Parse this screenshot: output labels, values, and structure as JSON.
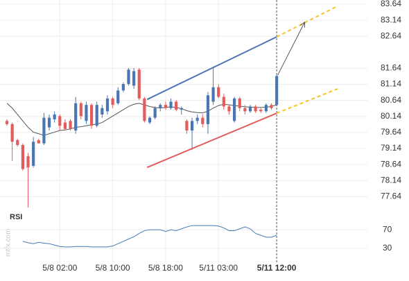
{
  "chart_data": {
    "type": "candlestick",
    "categories": [
      null,
      null,
      null,
      null,
      null,
      null,
      null,
      null,
      null,
      null,
      "5/8 02:00",
      null,
      null,
      null,
      null,
      null,
      null,
      null,
      null,
      null,
      "5/8 10:00",
      null,
      null,
      null,
      null,
      null,
      null,
      null,
      null,
      null,
      "5/8 18:00",
      null,
      null,
      null,
      null,
      null,
      null,
      null,
      null,
      null,
      "5/11 03:00",
      null,
      null,
      null,
      null,
      null,
      null,
      null,
      null,
      null,
      null,
      "5/11 12:00"
    ],
    "xlim": [
      -1.31,
      68.15
    ],
    "open": [
      80.0,
      79.9,
      79.4,
      79.25,
      78.9,
      78.6,
      79.4,
      79.3,
      79.8,
      80.05,
      80.15,
      79.95,
      80.0,
      79.7,
      80.55,
      80.0,
      80.5,
      79.85,
      80.2,
      80.3,
      80.7,
      80.55,
      80.95,
      81.15,
      81.1,
      81.6,
      80.7,
      79.95,
      80.1,
      80.4,
      80.5,
      80.4,
      80.6,
      80.35,
      80.0,
      79.7,
      80.0,
      80.1,
      79.9,
      80.6,
      81.05,
      80.75,
      80.45,
      80.0,
      80.7,
      80.4,
      80.3,
      80.45,
      80.35,
      80.3,
      80.5,
      80.5
    ],
    "high": [
      80.05,
      79.95,
      79.45,
      79.3,
      79.0,
      79.5,
      79.45,
      80.25,
      80.2,
      80.3,
      80.2,
      80.05,
      80.05,
      80.75,
      80.6,
      80.6,
      80.55,
      80.6,
      80.5,
      80.8,
      80.75,
      81.05,
      81.2,
      81.65,
      81.65,
      81.65,
      80.75,
      80.15,
      80.45,
      80.55,
      80.6,
      80.7,
      80.65,
      80.45,
      80.05,
      80.1,
      80.2,
      80.2,
      80.9,
      81.7,
      81.15,
      80.85,
      80.5,
      80.75,
      80.75,
      80.5,
      80.5,
      80.5,
      80.4,
      80.55,
      80.55,
      81.45
    ],
    "low": [
      79.85,
      78.75,
      79.2,
      78.45,
      77.3,
      78.55,
      79.3,
      79.25,
      79.7,
      79.95,
      79.7,
      79.7,
      79.7,
      79.6,
      80.05,
      79.9,
      79.75,
      79.8,
      80.1,
      80.2,
      80.4,
      80.5,
      80.9,
      81.1,
      81.0,
      80.65,
      79.95,
      79.9,
      80.05,
      80.3,
      80.35,
      80.35,
      80.3,
      80.2,
      79.6,
      79.1,
      79.9,
      79.8,
      79.6,
      80.5,
      80.7,
      80.35,
      80.2,
      79.95,
      80.3,
      80.2,
      80.25,
      80.25,
      80.25,
      80.25,
      80.35,
      80.45
    ],
    "close": [
      79.9,
      79.35,
      79.25,
      78.5,
      78.55,
      79.35,
      79.3,
      80.1,
      80.1,
      80.2,
      79.85,
      79.75,
      79.75,
      80.55,
      80.15,
      80.5,
      79.85,
      80.5,
      80.4,
      80.7,
      80.5,
      80.95,
      81.15,
      81.6,
      81.55,
      80.7,
      80.0,
      80.1,
      80.4,
      80.5,
      80.4,
      80.6,
      80.35,
      80.4,
      79.7,
      80.0,
      80.1,
      79.9,
      80.8,
      81.05,
      80.75,
      80.45,
      80.3,
      80.7,
      80.4,
      80.3,
      80.45,
      80.3,
      80.3,
      80.5,
      80.4,
      81.4
    ],
    "up_color": "#4a76b5",
    "down_color": "#e45b5b",
    "ylim": [
      77.28,
      83.77
    ],
    "yticks": [
      83.64,
      83.14,
      82.64,
      81.64,
      81.14,
      80.64,
      80.14,
      79.64,
      79.14,
      78.64,
      78.14,
      77.64
    ],
    "grid": true,
    "ma": {
      "color": "#555555",
      "values": [
        80.55,
        80.4,
        80.2,
        80.0,
        79.8,
        79.65,
        79.6,
        79.55,
        79.6,
        79.65,
        79.7,
        79.72,
        79.75,
        79.8,
        79.82,
        79.85,
        79.88,
        79.9,
        79.95,
        80.05,
        80.15,
        80.25,
        80.35,
        80.45,
        80.52,
        80.55,
        80.5,
        80.45,
        80.42,
        80.4,
        80.42,
        80.44,
        80.42,
        80.38,
        80.32,
        80.28,
        80.26,
        80.25,
        80.3,
        80.4,
        80.48,
        80.52,
        80.5,
        80.48,
        80.46,
        80.44,
        80.43,
        80.42,
        80.42,
        80.43,
        80.45,
        80.5
      ]
    },
    "trendlines": [
      {
        "color": "#4a76b5",
        "dashed": false,
        "x": [
          26.5,
          51
        ],
        "values": [
          80.67,
          82.62
        ]
      },
      {
        "color": "#f5c518",
        "dashed": true,
        "x": [
          51,
          62.5
        ],
        "values": [
          82.62,
          83.58
        ]
      },
      {
        "color": "#e45b5b",
        "dashed": false,
        "x": [
          26.5,
          51
        ],
        "values": [
          78.55,
          80.24
        ]
      },
      {
        "color": "#f5c518",
        "dashed": true,
        "x": [
          51,
          62.5
        ],
        "values": [
          80.24,
          81.0
        ]
      }
    ],
    "arrow": {
      "color": "#555555",
      "x": [
        51.2,
        56.3
      ],
      "values": [
        81.43,
        83.08
      ]
    },
    "rsi": {
      "label": "RSI",
      "color": "#4a7ab5",
      "ylim": [
        0,
        100
      ],
      "yticks": [
        70,
        30
      ],
      "values": [
        null,
        null,
        null,
        45,
        42,
        40,
        43,
        41,
        40,
        37,
        34,
        33,
        33,
        34,
        34,
        34,
        33,
        33,
        33,
        33,
        35,
        40,
        45,
        50,
        55,
        62,
        68,
        70,
        70,
        70,
        66,
        70,
        68,
        72,
        76,
        79,
        79,
        79,
        79,
        79,
        78,
        74,
        68,
        68,
        72,
        76,
        72,
        62,
        58,
        54,
        54,
        58
      ]
    },
    "watermark": "mtfx.com"
  }
}
